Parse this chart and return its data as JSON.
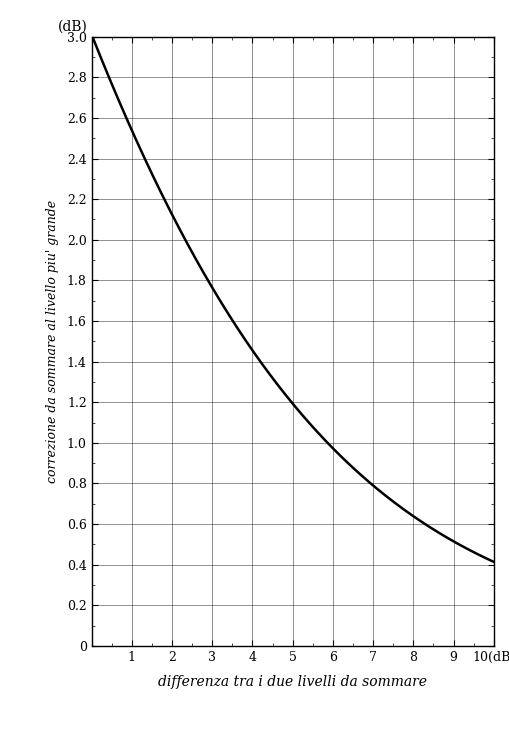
{
  "title_y": "(dB)",
  "xlabel": "differenza tra i due livelli da sommare",
  "ylabel": "correzione da sommare al livello piu' grande",
  "xlim": [
    0,
    10
  ],
  "ylim": [
    0,
    3.0
  ],
  "x_major_ticks": [
    0,
    1,
    2,
    3,
    4,
    5,
    6,
    7,
    8,
    9,
    10
  ],
  "y_major_ticks": [
    0,
    0.2,
    0.4,
    0.6,
    0.8,
    1.0,
    1.2,
    1.4,
    1.6,
    1.8,
    2.0,
    2.2,
    2.4,
    2.6,
    2.8,
    3.0
  ],
  "line_color": "#000000",
  "line_width": 1.8,
  "grid_color": "#000000",
  "grid_linewidth": 0.5,
  "background_color": "#ffffff",
  "font_family": "serif",
  "title_fontsize": 10,
  "label_fontsize": 10,
  "tick_fontsize": 9,
  "ylabel_fontsize": 9
}
